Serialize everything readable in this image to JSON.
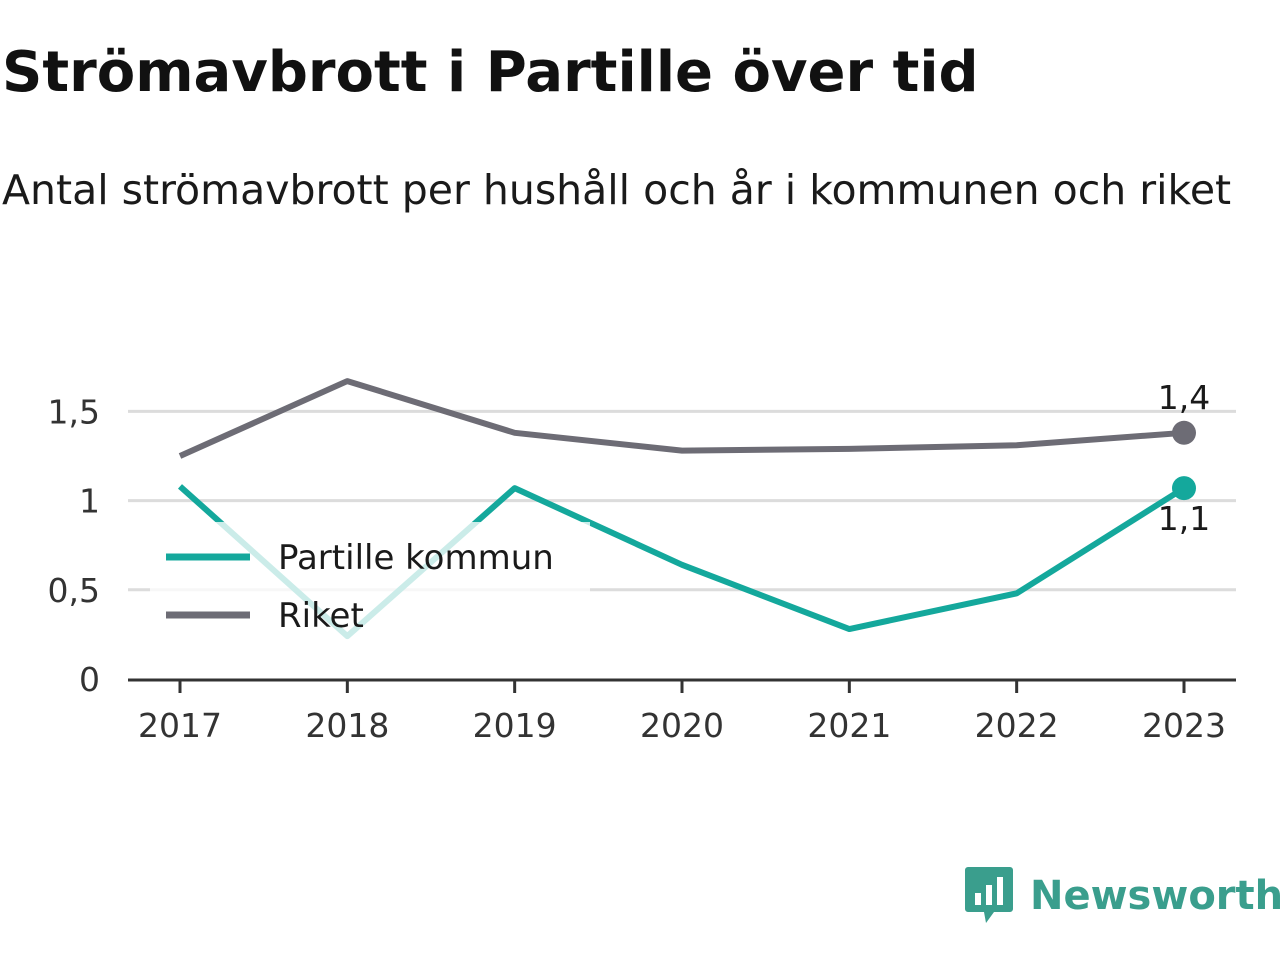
{
  "title": "Strömavbrott i Partille över tid",
  "subtitle": "Antal strömavbrott per hushåll och år i kommunen och riket",
  "brand": {
    "name": "Newsworthy",
    "color": "#3a9e8d"
  },
  "chart_data": {
    "type": "line",
    "x": [
      "2017",
      "2018",
      "2019",
      "2020",
      "2021",
      "2022",
      "2023"
    ],
    "ylim": [
      0,
      1.75
    ],
    "yticks": [
      0,
      0.5,
      1,
      1.5
    ],
    "ytick_labels": [
      "0",
      "0,5",
      "1",
      "1,5"
    ],
    "grid": true,
    "legend_position": "left-inside",
    "series": [
      {
        "name": "Partille kommun",
        "color": "#14a89c",
        "values": [
          1.08,
          0.24,
          1.07,
          0.64,
          0.28,
          0.48,
          1.07
        ],
        "end_label": "1,1"
      },
      {
        "name": "Riket",
        "color": "#6d6c75",
        "values": [
          1.25,
          1.67,
          1.38,
          1.28,
          1.29,
          1.31,
          1.38
        ],
        "end_label": "1,4"
      }
    ]
  }
}
